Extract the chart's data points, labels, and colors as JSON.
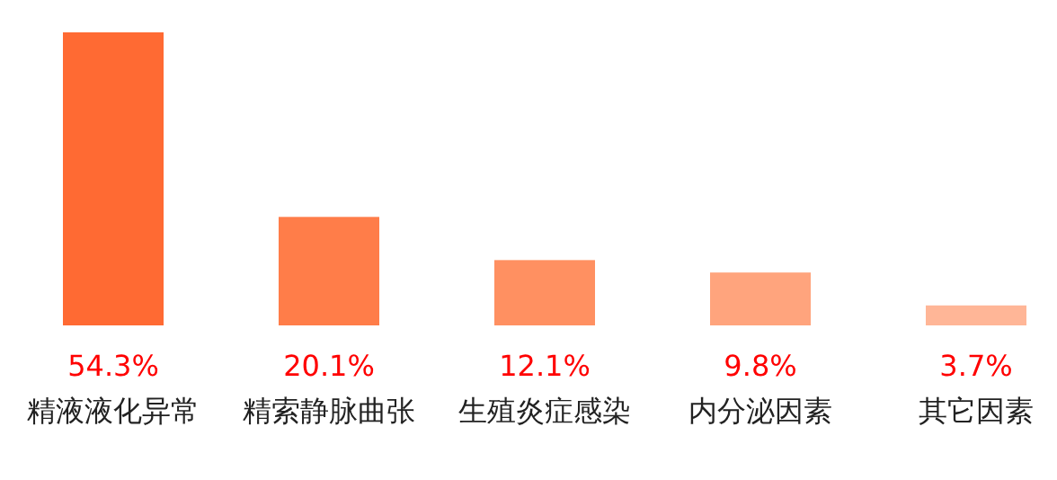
{
  "chart_data": {
    "type": "bar",
    "categories": [
      "精液液化异常",
      "精索静脉曲张",
      "生殖炎症感染",
      "内分泌因素",
      "其它因素"
    ],
    "values": [
      54.3,
      20.1,
      12.1,
      9.8,
      3.7
    ],
    "colors": [
      "#ff6a33",
      "#ff7d49",
      "#ff9061",
      "#ffa47d",
      "#ffb697"
    ],
    "value_labels": [
      "54.3%",
      "20.1%",
      "12.1%",
      "9.8%",
      "3.7%"
    ]
  }
}
